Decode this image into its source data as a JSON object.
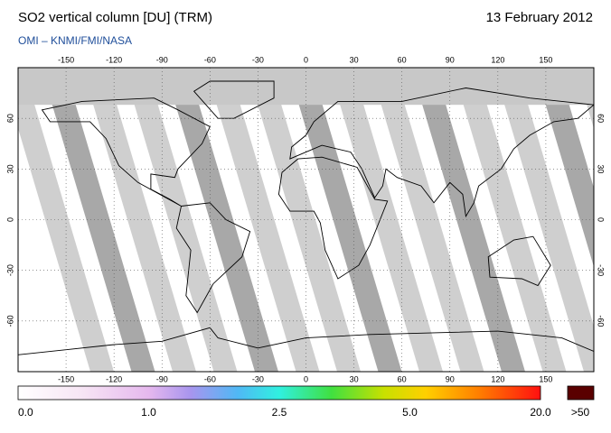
{
  "header": {
    "title": "SO2 vertical column [DU] (TRM)",
    "date": "13 February 2012",
    "source": "OMI  –  KNMI/FMI/NASA"
  },
  "map": {
    "lon_ticks": [
      -150,
      -120,
      -90,
      -60,
      -30,
      0,
      30,
      60,
      90,
      120,
      150
    ],
    "lat_ticks": [
      60,
      30,
      0,
      -30,
      -60
    ]
  },
  "colorbar": {
    "labels": [
      "0.0",
      "1.0",
      "2.5",
      "5.0",
      "20.0"
    ],
    "overflow_label": ">50"
  }
}
